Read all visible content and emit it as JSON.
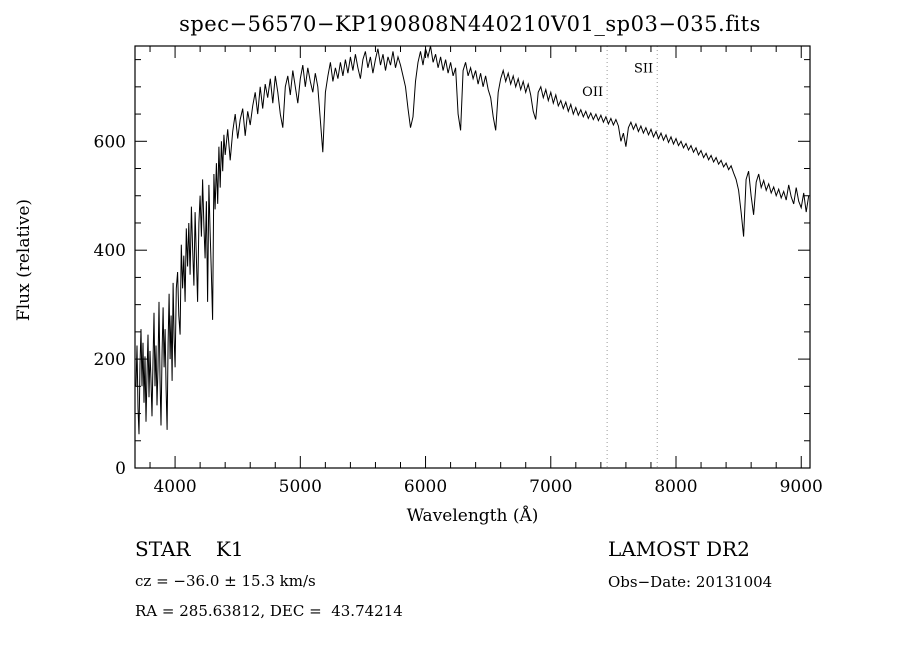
{
  "annotations": {
    "class_label": "STAR    K1",
    "survey": "LAMOST DR2",
    "cz": "cz = −36.0 ± 15.3 km/s",
    "obs_date": "Obs−Date: 20131004",
    "ra_dec": "RA = 285.63812, DEC =  43.74214"
  },
  "chart_data": {
    "type": "line",
    "title": "spec−56570−KP190808N440210V01_sp03−035.fits",
    "xlabel": "Wavelength (Å)",
    "ylabel": "Flux (relative)",
    "xlim": [
      3680,
      9070
    ],
    "ylim": [
      0,
      775
    ],
    "x_major_ticks": [
      4000,
      5000,
      6000,
      7000,
      8000,
      9000
    ],
    "x_minor_step": 200,
    "y_major_ticks": [
      0,
      200,
      400,
      600
    ],
    "y_minor_step": 50,
    "line_color": "#000000",
    "reference_line_color": "#999999",
    "reference_lines": [
      {
        "x": 7450,
        "label": "OII",
        "label_flux": 683
      },
      {
        "x": 7850,
        "label": "SII",
        "label_flux": 726
      }
    ],
    "points": [
      [
        3688,
        150
      ],
      [
        3696,
        225
      ],
      [
        3704,
        110
      ],
      [
        3712,
        62
      ],
      [
        3720,
        190
      ],
      [
        3728,
        255
      ],
      [
        3736,
        150
      ],
      [
        3744,
        230
      ],
      [
        3752,
        120
      ],
      [
        3760,
        205
      ],
      [
        3768,
        85
      ],
      [
        3776,
        170
      ],
      [
        3784,
        245
      ],
      [
        3792,
        130
      ],
      [
        3800,
        215
      ],
      [
        3808,
        160
      ],
      [
        3816,
        95
      ],
      [
        3824,
        195
      ],
      [
        3832,
        285
      ],
      [
        3840,
        150
      ],
      [
        3848,
        225
      ],
      [
        3856,
        115
      ],
      [
        3864,
        185
      ],
      [
        3872,
        305
      ],
      [
        3880,
        165
      ],
      [
        3888,
        78
      ],
      [
        3896,
        215
      ],
      [
        3904,
        295
      ],
      [
        3912,
        185
      ],
      [
        3920,
        255
      ],
      [
        3928,
        145
      ],
      [
        3936,
        70
      ],
      [
        3944,
        230
      ],
      [
        3952,
        320
      ],
      [
        3960,
        200
      ],
      [
        3968,
        280
      ],
      [
        3976,
        160
      ],
      [
        3984,
        340
      ],
      [
        3992,
        240
      ],
      [
        4000,
        185
      ],
      [
        4010,
        330
      ],
      [
        4020,
        360
      ],
      [
        4030,
        280
      ],
      [
        4040,
        245
      ],
      [
        4050,
        410
      ],
      [
        4060,
        330
      ],
      [
        4070,
        390
      ],
      [
        4080,
        305
      ],
      [
        4090,
        440
      ],
      [
        4100,
        370
      ],
      [
        4110,
        450
      ],
      [
        4120,
        355
      ],
      [
        4130,
        480
      ],
      [
        4140,
        405
      ],
      [
        4150,
        335
      ],
      [
        4160,
        470
      ],
      [
        4170,
        385
      ],
      [
        4180,
        305
      ],
      [
        4190,
        450
      ],
      [
        4200,
        500
      ],
      [
        4210,
        425
      ],
      [
        4220,
        530
      ],
      [
        4230,
        445
      ],
      [
        4240,
        385
      ],
      [
        4250,
        490
      ],
      [
        4260,
        305
      ],
      [
        4270,
        520
      ],
      [
        4280,
        435
      ],
      [
        4290,
        355
      ],
      [
        4300,
        272
      ],
      [
        4310,
        540
      ],
      [
        4320,
        475
      ],
      [
        4330,
        560
      ],
      [
        4340,
        485
      ],
      [
        4350,
        590
      ],
      [
        4360,
        515
      ],
      [
        4370,
        600
      ],
      [
        4380,
        545
      ],
      [
        4390,
        612
      ],
      [
        4400,
        575
      ],
      [
        4420,
        622
      ],
      [
        4440,
        565
      ],
      [
        4460,
        618
      ],
      [
        4480,
        650
      ],
      [
        4500,
        605
      ],
      [
        4520,
        640
      ],
      [
        4540,
        660
      ],
      [
        4560,
        610
      ],
      [
        4580,
        655
      ],
      [
        4600,
        630
      ],
      [
        4620,
        665
      ],
      [
        4640,
        690
      ],
      [
        4660,
        650
      ],
      [
        4680,
        700
      ],
      [
        4700,
        660
      ],
      [
        4720,
        705
      ],
      [
        4740,
        680
      ],
      [
        4760,
        715
      ],
      [
        4780,
        670
      ],
      [
        4800,
        720
      ],
      [
        4820,
        690
      ],
      [
        4840,
        650
      ],
      [
        4860,
        625
      ],
      [
        4880,
        700
      ],
      [
        4900,
        720
      ],
      [
        4920,
        685
      ],
      [
        4940,
        730
      ],
      [
        4960,
        700
      ],
      [
        4980,
        670
      ],
      [
        5000,
        715
      ],
      [
        5020,
        740
      ],
      [
        5040,
        700
      ],
      [
        5060,
        735
      ],
      [
        5080,
        710
      ],
      [
        5100,
        690
      ],
      [
        5120,
        725
      ],
      [
        5140,
        700
      ],
      [
        5160,
        640
      ],
      [
        5180,
        580
      ],
      [
        5200,
        690
      ],
      [
        5220,
        720
      ],
      [
        5240,
        745
      ],
      [
        5260,
        710
      ],
      [
        5280,
        735
      ],
      [
        5300,
        715
      ],
      [
        5320,
        745
      ],
      [
        5340,
        720
      ],
      [
        5360,
        750
      ],
      [
        5380,
        725
      ],
      [
        5400,
        755
      ],
      [
        5420,
        730
      ],
      [
        5440,
        760
      ],
      [
        5460,
        735
      ],
      [
        5480,
        715
      ],
      [
        5500,
        750
      ],
      [
        5520,
        765
      ],
      [
        5540,
        735
      ],
      [
        5560,
        755
      ],
      [
        5580,
        725
      ],
      [
        5600,
        750
      ],
      [
        5620,
        770
      ],
      [
        5640,
        740
      ],
      [
        5660,
        760
      ],
      [
        5680,
        730
      ],
      [
        5700,
        755
      ],
      [
        5720,
        740
      ],
      [
        5740,
        765
      ],
      [
        5760,
        735
      ],
      [
        5780,
        755
      ],
      [
        5800,
        740
      ],
      [
        5820,
        720
      ],
      [
        5840,
        700
      ],
      [
        5860,
        660
      ],
      [
        5880,
        625
      ],
      [
        5900,
        645
      ],
      [
        5920,
        710
      ],
      [
        5940,
        745
      ],
      [
        5960,
        765
      ],
      [
        5980,
        740
      ],
      [
        6000,
        770
      ],
      [
        6020,
        755
      ],
      [
        6040,
        775
      ],
      [
        6060,
        745
      ],
      [
        6080,
        760
      ],
      [
        6100,
        735
      ],
      [
        6120,
        755
      ],
      [
        6140,
        730
      ],
      [
        6160,
        750
      ],
      [
        6180,
        725
      ],
      [
        6200,
        745
      ],
      [
        6220,
        720
      ],
      [
        6240,
        735
      ],
      [
        6260,
        650
      ],
      [
        6280,
        620
      ],
      [
        6300,
        730
      ],
      [
        6320,
        745
      ],
      [
        6340,
        720
      ],
      [
        6360,
        735
      ],
      [
        6380,
        715
      ],
      [
        6400,
        730
      ],
      [
        6420,
        705
      ],
      [
        6440,
        725
      ],
      [
        6460,
        700
      ],
      [
        6480,
        720
      ],
      [
        6500,
        695
      ],
      [
        6520,
        680
      ],
      [
        6540,
        645
      ],
      [
        6560,
        620
      ],
      [
        6580,
        690
      ],
      [
        6600,
        715
      ],
      [
        6620,
        730
      ],
      [
        6640,
        710
      ],
      [
        6660,
        725
      ],
      [
        6680,
        705
      ],
      [
        6700,
        720
      ],
      [
        6720,
        700
      ],
      [
        6740,
        715
      ],
      [
        6760,
        695
      ],
      [
        6780,
        710
      ],
      [
        6800,
        690
      ],
      [
        6820,
        705
      ],
      [
        6840,
        685
      ],
      [
        6860,
        655
      ],
      [
        6880,
        640
      ],
      [
        6900,
        690
      ],
      [
        6920,
        700
      ],
      [
        6940,
        680
      ],
      [
        6960,
        695
      ],
      [
        6980,
        675
      ],
      [
        7000,
        690
      ],
      [
        7020,
        670
      ],
      [
        7040,
        685
      ],
      [
        7060,
        665
      ],
      [
        7080,
        675
      ],
      [
        7100,
        660
      ],
      [
        7120,
        672
      ],
      [
        7140,
        655
      ],
      [
        7160,
        668
      ],
      [
        7180,
        650
      ],
      [
        7200,
        662
      ],
      [
        7220,
        648
      ],
      [
        7240,
        658
      ],
      [
        7260,
        645
      ],
      [
        7280,
        655
      ],
      [
        7300,
        642
      ],
      [
        7320,
        652
      ],
      [
        7340,
        640
      ],
      [
        7360,
        650
      ],
      [
        7380,
        638
      ],
      [
        7400,
        648
      ],
      [
        7420,
        635
      ],
      [
        7440,
        645
      ],
      [
        7460,
        632
      ],
      [
        7480,
        642
      ],
      [
        7500,
        630
      ],
      [
        7520,
        640
      ],
      [
        7540,
        628
      ],
      [
        7560,
        600
      ],
      [
        7580,
        615
      ],
      [
        7600,
        590
      ],
      [
        7620,
        625
      ],
      [
        7640,
        635
      ],
      [
        7660,
        622
      ],
      [
        7680,
        632
      ],
      [
        7700,
        618
      ],
      [
        7720,
        628
      ],
      [
        7740,
        615
      ],
      [
        7760,
        625
      ],
      [
        7780,
        612
      ],
      [
        7800,
        622
      ],
      [
        7820,
        608
      ],
      [
        7840,
        618
      ],
      [
        7860,
        605
      ],
      [
        7880,
        615
      ],
      [
        7900,
        602
      ],
      [
        7920,
        612
      ],
      [
        7940,
        598
      ],
      [
        7960,
        608
      ],
      [
        7980,
        595
      ],
      [
        8000,
        605
      ],
      [
        8020,
        592
      ],
      [
        8040,
        600
      ],
      [
        8060,
        588
      ],
      [
        8080,
        596
      ],
      [
        8100,
        584
      ],
      [
        8120,
        592
      ],
      [
        8140,
        580
      ],
      [
        8160,
        588
      ],
      [
        8180,
        575
      ],
      [
        8200,
        583
      ],
      [
        8220,
        570
      ],
      [
        8240,
        578
      ],
      [
        8260,
        566
      ],
      [
        8280,
        574
      ],
      [
        8300,
        562
      ],
      [
        8320,
        570
      ],
      [
        8340,
        558
      ],
      [
        8360,
        565
      ],
      [
        8380,
        553
      ],
      [
        8400,
        560
      ],
      [
        8420,
        548
      ],
      [
        8440,
        555
      ],
      [
        8460,
        542
      ],
      [
        8480,
        530
      ],
      [
        8500,
        510
      ],
      [
        8520,
        470
      ],
      [
        8540,
        425
      ],
      [
        8560,
        530
      ],
      [
        8580,
        545
      ],
      [
        8600,
        500
      ],
      [
        8620,
        465
      ],
      [
        8640,
        525
      ],
      [
        8660,
        540
      ],
      [
        8680,
        515
      ],
      [
        8700,
        528
      ],
      [
        8720,
        510
      ],
      [
        8740,
        522
      ],
      [
        8760,
        505
      ],
      [
        8780,
        516
      ],
      [
        8800,
        500
      ],
      [
        8820,
        512
      ],
      [
        8840,
        496
      ],
      [
        8860,
        508
      ],
      [
        8880,
        492
      ],
      [
        8900,
        520
      ],
      [
        8920,
        498
      ],
      [
        8940,
        485
      ],
      [
        8960,
        515
      ],
      [
        8980,
        490
      ],
      [
        9000,
        478
      ],
      [
        9020,
        505
      ],
      [
        9040,
        470
      ],
      [
        9060,
        500
      ]
    ]
  }
}
